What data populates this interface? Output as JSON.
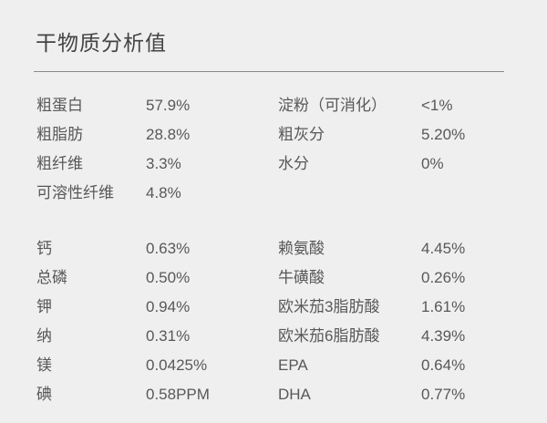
{
  "title": "干物质分析值",
  "group1": [
    {
      "name": "粗蛋白",
      "value": "57.9%",
      "name2": "淀粉（可消化）",
      "value2": "<1%"
    },
    {
      "name": "粗脂肪",
      "value": "28.8%",
      "name2": "粗灰分",
      "value2": "5.20%"
    },
    {
      "name": "粗纤维",
      "value": "3.3%",
      "name2": "水分",
      "value2": "0%"
    },
    {
      "name": "可溶性纤维",
      "value": "4.8%"
    }
  ],
  "group2": [
    {
      "name": "钙",
      "value": "0.63%",
      "name2": "赖氨酸",
      "value2": "4.45%"
    },
    {
      "name": "总磷",
      "value": "0.50%",
      "name2": "牛磺酸",
      "value2": "0.26%"
    },
    {
      "name": "钾",
      "value": "0.94%",
      "name2": "欧米茄3脂肪酸",
      "value2": "1.61%"
    },
    {
      "name": "纳",
      "value": "0.31%",
      "name2": "欧米茄6脂肪酸",
      "value2": "4.39%"
    },
    {
      "name": "镁",
      "value": "0.0425%",
      "name2": "EPA",
      "value2": "0.64%"
    },
    {
      "name": "碘",
      "value": "0.58PPM",
      "name2": "DHA",
      "value2": "0.77%"
    }
  ]
}
